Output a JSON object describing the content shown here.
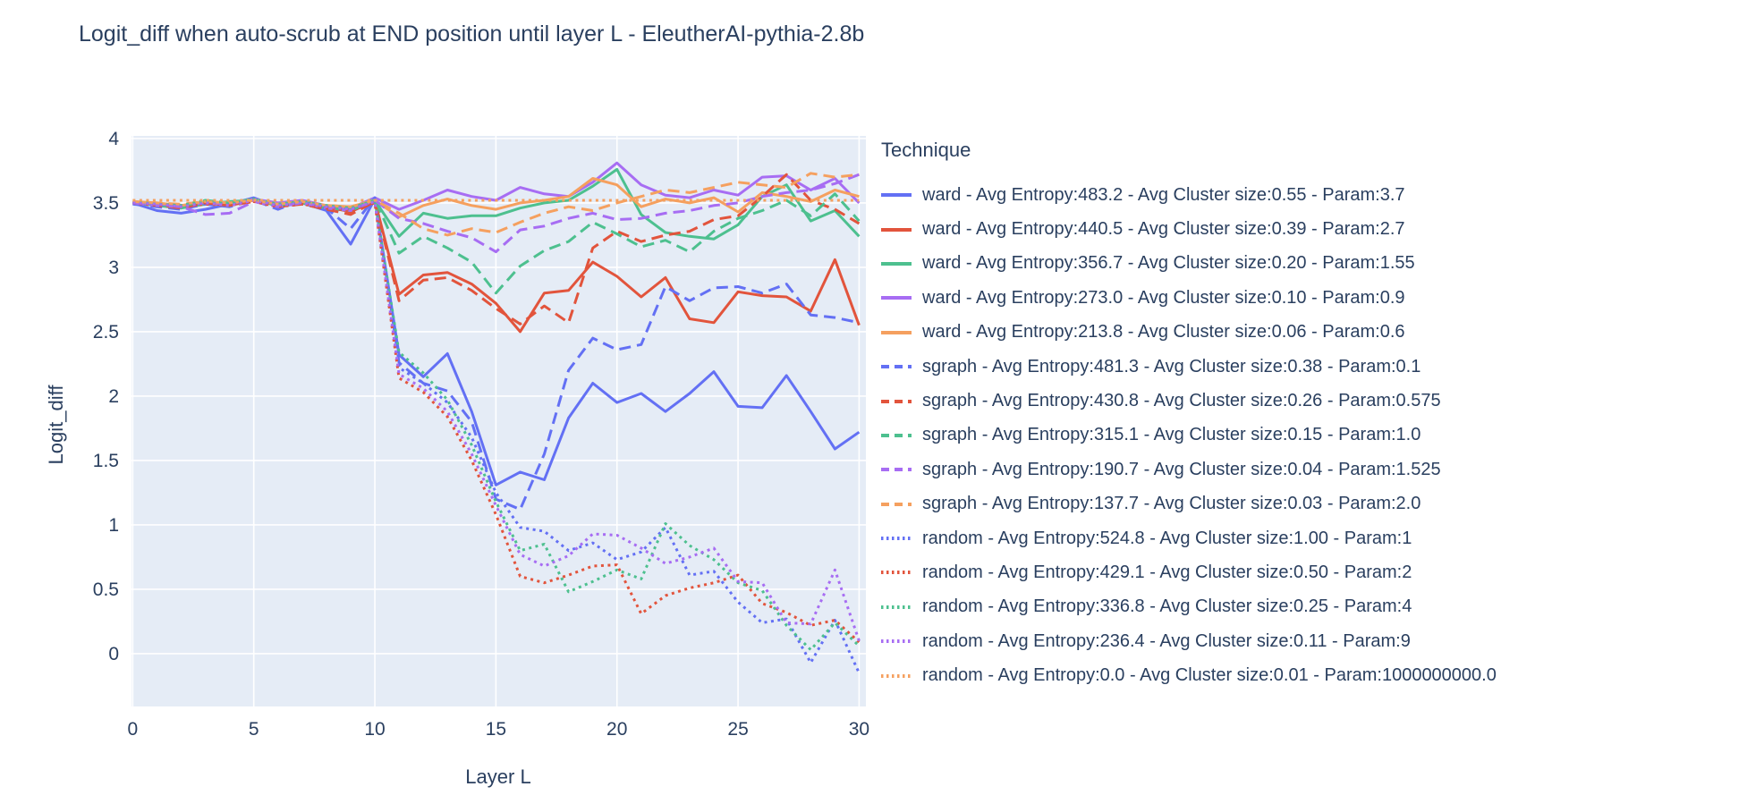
{
  "title": "Logit_diff when auto-scrub at END position until layer L - EleutherAI-pythia-2.8b",
  "axes": {
    "x_title": "Layer L",
    "y_title": "Logit_diff"
  },
  "legend": {
    "title": "Technique"
  },
  "chart_data": {
    "type": "line",
    "title": "Logit_diff when auto-scrub at END position until layer L - EleutherAI-pythia-2.8b",
    "xlabel": "Layer L",
    "ylabel": "Logit_diff",
    "grid": true,
    "legend_position": "right",
    "plot_bg": "#E5ECF6",
    "grid_color": "#ffffff",
    "text_color": "#2a3f5f",
    "xlim": [
      -0.05,
      30.28
    ],
    "ylim": [
      -0.41,
      4.02
    ],
    "x_ticks": [
      0,
      5,
      10,
      15,
      20,
      25,
      30
    ],
    "y_ticks": [
      0,
      0.5,
      1,
      1.5,
      2,
      2.5,
      3,
      3.5,
      4
    ],
    "x": [
      0,
      1,
      2,
      3,
      4,
      5,
      6,
      7,
      8,
      9,
      10,
      11,
      12,
      13,
      14,
      15,
      16,
      17,
      18,
      19,
      20,
      21,
      22,
      23,
      24,
      25,
      26,
      27,
      28,
      29,
      30
    ],
    "series": [
      {
        "id": "ward-1",
        "name": "ward - Avg Entropy:483.2 - Avg Cluster size:0.55 - Param:3.7",
        "color": "#6370F4",
        "dash": "solid",
        "values": [
          3.5,
          3.44,
          3.42,
          3.45,
          3.49,
          3.54,
          3.47,
          3.5,
          3.44,
          3.18,
          3.53,
          2.32,
          2.15,
          2.33,
          1.88,
          1.31,
          1.41,
          1.35,
          1.83,
          2.1,
          1.95,
          2.02,
          1.88,
          2.02,
          2.19,
          1.92,
          1.91,
          2.16,
          1.88,
          1.59,
          1.72
        ]
      },
      {
        "id": "ward-2",
        "name": "ward - Avg Entropy:440.5 - Avg Cluster size:0.39 - Param:2.7",
        "color": "#E2543C",
        "dash": "solid",
        "values": [
          3.51,
          3.49,
          3.47,
          3.5,
          3.48,
          3.52,
          3.49,
          3.5,
          3.47,
          3.43,
          3.52,
          2.79,
          2.94,
          2.96,
          2.87,
          2.72,
          2.5,
          2.8,
          2.82,
          3.04,
          2.93,
          2.77,
          2.92,
          2.6,
          2.57,
          2.81,
          2.78,
          2.77,
          2.66,
          3.06,
          2.55
        ]
      },
      {
        "id": "ward-3",
        "name": "ward - Avg Entropy:356.7 - Avg Cluster size:0.20 - Param:1.55",
        "color": "#4DC08F",
        "dash": "solid",
        "values": [
          3.5,
          3.48,
          3.46,
          3.49,
          3.51,
          3.52,
          3.48,
          3.5,
          3.46,
          3.44,
          3.52,
          3.24,
          3.42,
          3.38,
          3.4,
          3.4,
          3.46,
          3.5,
          3.52,
          3.63,
          3.76,
          3.41,
          3.27,
          3.24,
          3.22,
          3.33,
          3.55,
          3.64,
          3.36,
          3.44,
          3.24
        ]
      },
      {
        "id": "ward-4",
        "name": "ward - Avg Entropy:273.0 - Avg Cluster size:0.10 - Param:0.9",
        "color": "#A76DF3",
        "dash": "solid",
        "values": [
          3.5,
          3.49,
          3.48,
          3.5,
          3.49,
          3.53,
          3.5,
          3.52,
          3.48,
          3.46,
          3.54,
          3.45,
          3.52,
          3.6,
          3.55,
          3.52,
          3.62,
          3.57,
          3.55,
          3.66,
          3.81,
          3.64,
          3.56,
          3.54,
          3.6,
          3.56,
          3.7,
          3.71,
          3.6,
          3.69,
          3.5
        ]
      },
      {
        "id": "ward-5",
        "name": "ward - Avg Entropy:213.8 - Avg Cluster size:0.06 - Param:0.6",
        "color": "#F5A05F",
        "dash": "solid",
        "values": [
          3.51,
          3.5,
          3.48,
          3.51,
          3.5,
          3.52,
          3.49,
          3.51,
          3.48,
          3.47,
          3.52,
          3.39,
          3.48,
          3.53,
          3.48,
          3.45,
          3.5,
          3.52,
          3.55,
          3.69,
          3.64,
          3.47,
          3.53,
          3.5,
          3.54,
          3.43,
          3.58,
          3.55,
          3.51,
          3.6,
          3.55
        ]
      },
      {
        "id": "sgraph-1",
        "name": "sgraph - Avg Entropy:481.3 - Avg Cluster size:0.38 - Param:0.1",
        "color": "#6370F4",
        "dash": "dash",
        "values": [
          3.49,
          3.47,
          3.45,
          3.49,
          3.47,
          3.52,
          3.45,
          3.52,
          3.46,
          3.3,
          3.54,
          2.26,
          2.1,
          2.04,
          1.8,
          1.2,
          1.12,
          1.55,
          2.2,
          2.45,
          2.36,
          2.4,
          2.85,
          2.74,
          2.84,
          2.85,
          2.8,
          2.87,
          2.63,
          2.61,
          2.57
        ]
      },
      {
        "id": "sgraph-2",
        "name": "sgraph - Avg Entropy:430.8 - Avg Cluster size:0.26 - Param:0.575",
        "color": "#E2543C",
        "dash": "dash",
        "values": [
          3.5,
          3.48,
          3.46,
          3.5,
          3.48,
          3.51,
          3.47,
          3.49,
          3.45,
          3.41,
          3.51,
          2.74,
          2.9,
          2.92,
          2.82,
          2.68,
          2.56,
          2.7,
          2.57,
          3.15,
          3.28,
          3.2,
          3.25,
          3.28,
          3.37,
          3.4,
          3.55,
          3.72,
          3.52,
          3.45,
          3.34
        ]
      },
      {
        "id": "sgraph-3",
        "name": "sgraph - Avg Entropy:315.1 - Avg Cluster size:0.15 - Param:1.0",
        "color": "#4DC08F",
        "dash": "dash",
        "values": [
          3.5,
          3.49,
          3.47,
          3.52,
          3.5,
          3.53,
          3.48,
          3.51,
          3.47,
          3.45,
          3.53,
          3.11,
          3.24,
          3.15,
          3.04,
          2.8,
          3.01,
          3.13,
          3.2,
          3.35,
          3.26,
          3.16,
          3.21,
          3.12,
          3.28,
          3.38,
          3.44,
          3.52,
          3.4,
          3.57,
          3.36
        ]
      },
      {
        "id": "sgraph-4",
        "name": "sgraph - Avg Entropy:190.7 - Avg Cluster size:0.04 - Param:1.525",
        "color": "#A76DF3",
        "dash": "dash",
        "values": [
          3.5,
          3.48,
          3.47,
          3.41,
          3.42,
          3.51,
          3.47,
          3.5,
          3.46,
          3.44,
          3.52,
          3.38,
          3.34,
          3.28,
          3.23,
          3.12,
          3.29,
          3.32,
          3.38,
          3.42,
          3.37,
          3.38,
          3.42,
          3.44,
          3.48,
          3.5,
          3.55,
          3.58,
          3.6,
          3.65,
          3.72
        ]
      },
      {
        "id": "sgraph-5",
        "name": "sgraph - Avg Entropy:137.7 - Avg Cluster size:0.03 - Param:2.0",
        "color": "#F5A05F",
        "dash": "dash",
        "values": [
          3.51,
          3.5,
          3.49,
          3.51,
          3.5,
          3.52,
          3.49,
          3.51,
          3.48,
          3.47,
          3.52,
          3.42,
          3.3,
          3.25,
          3.3,
          3.27,
          3.35,
          3.42,
          3.47,
          3.44,
          3.5,
          3.55,
          3.6,
          3.58,
          3.62,
          3.66,
          3.64,
          3.62,
          3.73,
          3.7,
          3.72
        ]
      },
      {
        "id": "random-1",
        "name": "random - Avg Entropy:524.8 - Avg Cluster size:1.00 - Param:1",
        "color": "#6370F4",
        "dash": "dot",
        "values": [
          3.5,
          3.49,
          3.48,
          3.5,
          3.49,
          3.52,
          3.48,
          3.5,
          3.47,
          3.45,
          3.51,
          2.22,
          2.1,
          1.95,
          1.68,
          1.25,
          0.98,
          0.95,
          0.8,
          0.86,
          0.73,
          0.79,
          0.98,
          0.61,
          0.64,
          0.4,
          0.24,
          0.27,
          -0.07,
          0.26,
          -0.15
        ]
      },
      {
        "id": "random-2",
        "name": "random - Avg Entropy:429.1 - Avg Cluster size:0.50 - Param:2",
        "color": "#E2543C",
        "dash": "dot",
        "values": [
          3.5,
          3.48,
          3.47,
          3.49,
          3.48,
          3.51,
          3.47,
          3.49,
          3.46,
          3.44,
          3.5,
          2.14,
          2.03,
          1.84,
          1.5,
          1.08,
          0.6,
          0.55,
          0.61,
          0.68,
          0.69,
          0.31,
          0.45,
          0.51,
          0.55,
          0.61,
          0.39,
          0.32,
          0.22,
          0.26,
          0.09
        ]
      },
      {
        "id": "random-3",
        "name": "random - Avg Entropy:336.8 - Avg Cluster size:0.25 - Param:4",
        "color": "#4DC08F",
        "dash": "dot",
        "values": [
          3.51,
          3.49,
          3.48,
          3.52,
          3.5,
          3.53,
          3.49,
          3.51,
          3.48,
          3.46,
          3.52,
          2.34,
          2.18,
          1.97,
          1.62,
          1.18,
          0.8,
          0.85,
          0.48,
          0.56,
          0.65,
          0.58,
          1.01,
          0.84,
          0.73,
          0.55,
          0.49,
          0.22,
          0.03,
          0.24,
          0.06
        ]
      },
      {
        "id": "random-4",
        "name": "random - Avg Entropy:236.4 - Avg Cluster size:0.11 - Param:9",
        "color": "#A76DF3",
        "dash": "dot",
        "values": [
          3.5,
          3.49,
          3.47,
          3.5,
          3.48,
          3.52,
          3.48,
          3.5,
          3.47,
          3.45,
          3.51,
          2.17,
          2.06,
          1.88,
          1.55,
          1.15,
          0.77,
          0.68,
          0.76,
          0.93,
          0.92,
          0.82,
          0.7,
          0.75,
          0.82,
          0.56,
          0.55,
          0.24,
          0.23,
          0.65,
          0.1
        ]
      },
      {
        "id": "random-5",
        "name": "random - Avg Entropy:0.0 - Avg Cluster size:0.01 - Param:1000000000.0",
        "color": "#F5A05F",
        "dash": "dot",
        "values": [
          3.52,
          3.52,
          3.52,
          3.52,
          3.52,
          3.52,
          3.52,
          3.52,
          3.52,
          3.52,
          3.52,
          3.52,
          3.52,
          3.52,
          3.52,
          3.52,
          3.52,
          3.52,
          3.52,
          3.52,
          3.52,
          3.52,
          3.52,
          3.52,
          3.52,
          3.52,
          3.52,
          3.52,
          3.52,
          3.52,
          3.52
        ]
      }
    ]
  }
}
